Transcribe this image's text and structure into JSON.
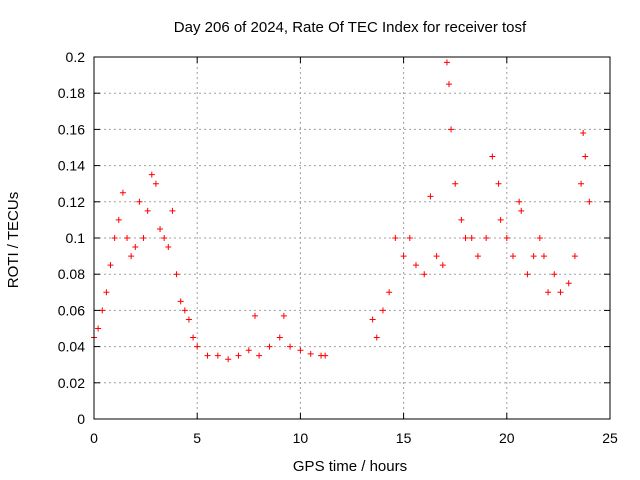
{
  "chart_data": {
    "type": "scatter",
    "title": "Day 206 of 2024, Rate Of TEC Index for receiver tosf",
    "xlabel": "GPS time / hours",
    "ylabel": "ROTI / TECUs",
    "xlim": [
      0,
      25
    ],
    "ylim": [
      0,
      0.2
    ],
    "x_ticks": [
      0,
      5,
      10,
      15,
      20,
      25
    ],
    "y_ticks": [
      0,
      0.02,
      0.04,
      0.06,
      0.08,
      0.1,
      0.12,
      0.14,
      0.16,
      0.18,
      0.2
    ],
    "x_tick_labels": [
      "0",
      "5",
      "10",
      "15",
      "20",
      "25"
    ],
    "y_tick_labels": [
      "0",
      "0.02",
      "0.04",
      "0.06",
      "0.08",
      "0.1",
      "0.12",
      "0.14",
      "0.16",
      "0.18",
      "0.2"
    ],
    "grid": true,
    "marker": "+",
    "color": "#ff0000",
    "series": [
      {
        "x": [
          0.0,
          0.2,
          0.4,
          0.6,
          0.8,
          1.0,
          1.2,
          1.4,
          1.6,
          1.8,
          2.0,
          2.2,
          2.4,
          2.6,
          2.8,
          3.0,
          3.2,
          3.4,
          3.6,
          3.8,
          4.0,
          4.2,
          4.4,
          4.6,
          4.8,
          5.0,
          5.5,
          6.0,
          6.5,
          7.0,
          7.5,
          7.8,
          8.0,
          8.5,
          9.0,
          9.2,
          9.5,
          10.0,
          10.5,
          11.0,
          11.2,
          13.5,
          13.7,
          14.0,
          14.3,
          14.6,
          15.0,
          15.3,
          15.6,
          16.0,
          16.3,
          16.6,
          16.9,
          17.1,
          17.2,
          17.3,
          17.5,
          17.8,
          18.0,
          18.3,
          18.6,
          19.0,
          19.3,
          19.6,
          19.7,
          20.0,
          20.3,
          20.6,
          20.7,
          21.0,
          21.3,
          21.6,
          21.8,
          22.0,
          22.3,
          22.6,
          23.0,
          23.3,
          23.6,
          23.7,
          23.8,
          24.0
        ],
        "y": [
          0.045,
          0.05,
          0.06,
          0.07,
          0.085,
          0.1,
          0.11,
          0.125,
          0.1,
          0.09,
          0.095,
          0.12,
          0.1,
          0.115,
          0.135,
          0.13,
          0.105,
          0.1,
          0.095,
          0.115,
          0.08,
          0.065,
          0.06,
          0.055,
          0.045,
          0.04,
          0.035,
          0.035,
          0.033,
          0.035,
          0.038,
          0.057,
          0.035,
          0.04,
          0.045,
          0.057,
          0.04,
          0.038,
          0.036,
          0.035,
          0.035,
          0.055,
          0.045,
          0.06,
          0.07,
          0.1,
          0.09,
          0.1,
          0.085,
          0.08,
          0.123,
          0.09,
          0.085,
          0.197,
          0.185,
          0.16,
          0.13,
          0.11,
          0.1,
          0.1,
          0.09,
          0.1,
          0.145,
          0.13,
          0.11,
          0.1,
          0.09,
          0.12,
          0.115,
          0.08,
          0.09,
          0.1,
          0.09,
          0.07,
          0.08,
          0.07,
          0.075,
          0.09,
          0.13,
          0.158,
          0.145,
          0.12
        ]
      }
    ]
  }
}
